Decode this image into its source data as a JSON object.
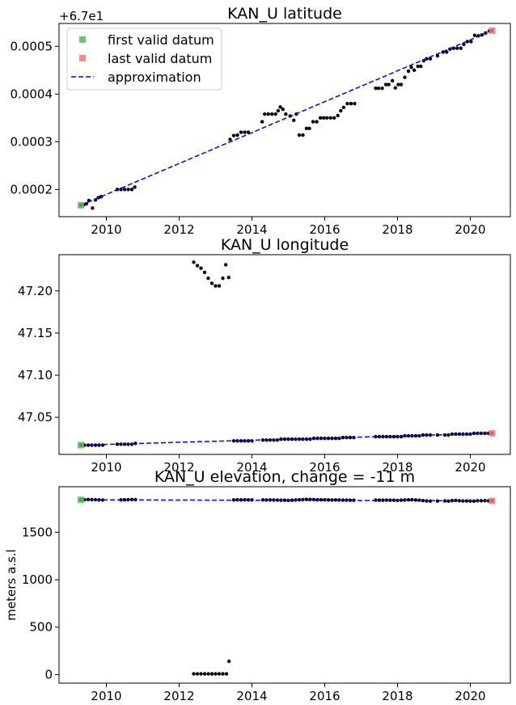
{
  "chart_data": [
    {
      "type": "scatter",
      "title": "KAN_U latitude",
      "offset_text": "+6.7e1",
      "xlabel": "",
      "ylabel": "",
      "xlim": [
        2008.7,
        2021.1
      ],
      "ylim": [
        0.000143,
        0.000548
      ],
      "xticks": [
        2010,
        2012,
        2014,
        2016,
        2018,
        2020
      ],
      "yticks": [
        0.0002,
        0.0003,
        0.0004,
        0.0005
      ],
      "ytick_labels": [
        "0.0002",
        "0.0003",
        "0.0004",
        "0.0005"
      ],
      "legend": {
        "position": "top-left",
        "entries": [
          {
            "label": "first valid datum",
            "color": "#5cb85c",
            "marker": "square"
          },
          {
            "label": "last valid datum",
            "color": "#f07878",
            "marker": "square"
          },
          {
            "label": "approximation",
            "color": "#0000ff",
            "marker": "dashed-line"
          }
        ]
      },
      "first_valid": [
        2009.3,
        0.000167
      ],
      "last_valid": [
        2020.6,
        0.000533
      ],
      "approximation": {
        "x": [
          2009.3,
          2020.6
        ],
        "y": [
          0.000167,
          0.000533
        ]
      },
      "points": [
        [
          2009.3,
          0.000167
        ],
        [
          2009.38,
          0.000168
        ],
        [
          2009.45,
          0.00017
        ],
        [
          2009.52,
          0.000177
        ],
        [
          2009.62,
          0.000161
        ],
        [
          2009.7,
          0.000178
        ],
        [
          2009.78,
          0.000183
        ],
        [
          2009.86,
          0.000185
        ],
        [
          2010.3,
          0.0002
        ],
        [
          2010.4,
          0.0002
        ],
        [
          2010.5,
          0.0002
        ],
        [
          2010.6,
          0.0002
        ],
        [
          2010.7,
          0.0002
        ],
        [
          2010.78,
          0.000205
        ],
        [
          2013.4,
          0.000305
        ],
        [
          2013.5,
          0.000313
        ],
        [
          2013.6,
          0.000314
        ],
        [
          2013.7,
          0.00032
        ],
        [
          2013.8,
          0.00032
        ],
        [
          2013.9,
          0.00032
        ],
        [
          2014.28,
          0.000342
        ],
        [
          2014.35,
          0.000358
        ],
        [
          2014.45,
          0.000358
        ],
        [
          2014.55,
          0.000358
        ],
        [
          2014.65,
          0.000358
        ],
        [
          2014.72,
          0.000365
        ],
        [
          2014.78,
          0.000373
        ],
        [
          2014.85,
          0.000368
        ],
        [
          2014.93,
          0.000358
        ],
        [
          2015.05,
          0.000354
        ],
        [
          2015.15,
          0.000345
        ],
        [
          2015.22,
          0.000358
        ],
        [
          2015.3,
          0.000314
        ],
        [
          2015.4,
          0.000314
        ],
        [
          2015.5,
          0.000328
        ],
        [
          2015.58,
          0.000328
        ],
        [
          2015.68,
          0.000342
        ],
        [
          2015.78,
          0.000342
        ],
        [
          2015.88,
          0.00035
        ],
        [
          2015.97,
          0.00035
        ],
        [
          2016.06,
          0.00035
        ],
        [
          2016.16,
          0.00035
        ],
        [
          2016.26,
          0.00035
        ],
        [
          2016.36,
          0.000355
        ],
        [
          2016.44,
          0.000365
        ],
        [
          2016.52,
          0.000372
        ],
        [
          2016.62,
          0.00038
        ],
        [
          2016.72,
          0.00038
        ],
        [
          2016.82,
          0.00038
        ],
        [
          2017.4,
          0.000412
        ],
        [
          2017.48,
          0.000412
        ],
        [
          2017.58,
          0.000412
        ],
        [
          2017.68,
          0.00042
        ],
        [
          2017.76,
          0.00042
        ],
        [
          2017.86,
          0.000428
        ],
        [
          2017.94,
          0.000413
        ],
        [
          2018.02,
          0.00042
        ],
        [
          2018.1,
          0.00042
        ],
        [
          2018.2,
          0.000435
        ],
        [
          2018.3,
          0.000448
        ],
        [
          2018.38,
          0.000456
        ],
        [
          2018.46,
          0.00045
        ],
        [
          2018.56,
          0.000458
        ],
        [
          2018.64,
          0.000458
        ],
        [
          2018.72,
          0.00047
        ],
        [
          2018.8,
          0.000474
        ],
        [
          2018.9,
          0.000474
        ],
        [
          2019.1,
          0.00048
        ],
        [
          2019.25,
          0.000488
        ],
        [
          2019.35,
          0.000488
        ],
        [
          2019.44,
          0.000494
        ],
        [
          2019.54,
          0.000496
        ],
        [
          2019.64,
          0.000496
        ],
        [
          2019.74,
          0.000496
        ],
        [
          2019.82,
          0.000504
        ],
        [
          2019.92,
          0.00051
        ],
        [
          2020.02,
          0.00051
        ],
        [
          2020.12,
          0.000523
        ],
        [
          2020.22,
          0.000522
        ],
        [
          2020.32,
          0.000524
        ],
        [
          2020.42,
          0.000528
        ],
        [
          2020.52,
          0.000532
        ],
        [
          2020.6,
          0.000533
        ]
      ]
    },
    {
      "type": "scatter",
      "title": "KAN_U longitude",
      "xlabel": "",
      "ylabel": "",
      "xlim": [
        2008.7,
        2021.1
      ],
      "ylim": [
        47.006,
        47.243
      ],
      "xticks": [
        2010,
        2012,
        2014,
        2016,
        2018,
        2020
      ],
      "yticks": [
        47.05,
        47.1,
        47.15,
        47.2
      ],
      "ytick_labels": [
        "47.05",
        "47.10",
        "47.15",
        "47.20"
      ],
      "first_valid": [
        2009.3,
        47.017
      ],
      "last_valid": [
        2020.6,
        47.031
      ],
      "approximation": {
        "x": [
          2009.3,
          2020.6
        ],
        "y": [
          47.017,
          47.031
        ]
      },
      "points": [
        [
          2009.3,
          47.017
        ],
        [
          2009.4,
          47.017
        ],
        [
          2009.5,
          47.017
        ],
        [
          2009.6,
          47.017
        ],
        [
          2009.7,
          47.017
        ],
        [
          2009.8,
          47.017
        ],
        [
          2009.9,
          47.017
        ],
        [
          2010.3,
          47.018
        ],
        [
          2010.4,
          47.018
        ],
        [
          2010.5,
          47.018
        ],
        [
          2010.6,
          47.018
        ],
        [
          2010.7,
          47.018
        ],
        [
          2010.8,
          47.019
        ],
        [
          2012.4,
          47.234
        ],
        [
          2012.5,
          47.23
        ],
        [
          2012.6,
          47.227
        ],
        [
          2012.7,
          47.222
        ],
        [
          2012.8,
          47.215
        ],
        [
          2012.9,
          47.209
        ],
        [
          2013.0,
          47.206
        ],
        [
          2013.1,
          47.206
        ],
        [
          2013.2,
          47.215
        ],
        [
          2013.28,
          47.231
        ],
        [
          2013.36,
          47.216
        ],
        [
          2013.5,
          47.022
        ],
        [
          2013.6,
          47.022
        ],
        [
          2013.7,
          47.022
        ],
        [
          2013.8,
          47.022
        ],
        [
          2013.9,
          47.022
        ],
        [
          2014.0,
          47.022
        ],
        [
          2014.3,
          47.023
        ],
        [
          2014.4,
          47.023
        ],
        [
          2014.5,
          47.023
        ],
        [
          2014.6,
          47.023
        ],
        [
          2014.7,
          47.023
        ],
        [
          2014.8,
          47.024
        ],
        [
          2014.9,
          47.024
        ],
        [
          2015.0,
          47.024
        ],
        [
          2015.1,
          47.024
        ],
        [
          2015.2,
          47.024
        ],
        [
          2015.3,
          47.024
        ],
        [
          2015.4,
          47.024
        ],
        [
          2015.5,
          47.024
        ],
        [
          2015.6,
          47.024
        ],
        [
          2015.7,
          47.025
        ],
        [
          2015.8,
          47.025
        ],
        [
          2015.9,
          47.025
        ],
        [
          2016.0,
          47.025
        ],
        [
          2016.1,
          47.025
        ],
        [
          2016.2,
          47.025
        ],
        [
          2016.3,
          47.025
        ],
        [
          2016.4,
          47.025
        ],
        [
          2016.5,
          47.026
        ],
        [
          2016.6,
          47.026
        ],
        [
          2016.7,
          47.026
        ],
        [
          2016.8,
          47.026
        ],
        [
          2017.4,
          47.027
        ],
        [
          2017.5,
          47.027
        ],
        [
          2017.6,
          47.027
        ],
        [
          2017.7,
          47.027
        ],
        [
          2017.8,
          47.027
        ],
        [
          2017.9,
          47.027
        ],
        [
          2018.0,
          47.027
        ],
        [
          2018.1,
          47.027
        ],
        [
          2018.2,
          47.028
        ],
        [
          2018.3,
          47.028
        ],
        [
          2018.4,
          47.028
        ],
        [
          2018.5,
          47.028
        ],
        [
          2018.6,
          47.028
        ],
        [
          2018.7,
          47.029
        ],
        [
          2018.8,
          47.029
        ],
        [
          2018.9,
          47.029
        ],
        [
          2019.1,
          47.029
        ],
        [
          2019.3,
          47.029
        ],
        [
          2019.4,
          47.029
        ],
        [
          2019.5,
          47.03
        ],
        [
          2019.6,
          47.03
        ],
        [
          2019.7,
          47.03
        ],
        [
          2019.8,
          47.03
        ],
        [
          2019.9,
          47.03
        ],
        [
          2020.0,
          47.03
        ],
        [
          2020.1,
          47.031
        ],
        [
          2020.2,
          47.031
        ],
        [
          2020.3,
          47.031
        ],
        [
          2020.4,
          47.031
        ],
        [
          2020.5,
          47.031
        ],
        [
          2020.6,
          47.031
        ]
      ]
    },
    {
      "type": "scatter",
      "title": "KAN_U elevation, change = -11 m",
      "xlabel": "",
      "ylabel": "meters a.s.l",
      "xlim": [
        2008.7,
        2021.1
      ],
      "ylim": [
        -90,
        1980
      ],
      "xticks": [
        2010,
        2012,
        2014,
        2016,
        2018,
        2020
      ],
      "yticks": [
        0,
        500,
        1000,
        1500
      ],
      "ytick_labels": [
        "0",
        "500",
        "1000",
        "1500"
      ],
      "first_valid": [
        2009.3,
        1842
      ],
      "last_valid": [
        2020.6,
        1831
      ],
      "approximation": {
        "x": [
          2009.3,
          2020.6
        ],
        "y": [
          1842,
          1831
        ]
      },
      "points": [
        [
          2009.3,
          1842
        ],
        [
          2009.4,
          1843
        ],
        [
          2009.5,
          1845
        ],
        [
          2009.6,
          1844
        ],
        [
          2009.7,
          1843
        ],
        [
          2009.8,
          1841
        ],
        [
          2009.9,
          1840
        ],
        [
          2010.4,
          1841
        ],
        [
          2010.5,
          1842
        ],
        [
          2010.6,
          1843
        ],
        [
          2010.7,
          1845
        ],
        [
          2010.8,
          1844
        ],
        [
          2012.4,
          8
        ],
        [
          2012.5,
          8
        ],
        [
          2012.6,
          8
        ],
        [
          2012.7,
          8
        ],
        [
          2012.8,
          8
        ],
        [
          2012.9,
          8
        ],
        [
          2013.0,
          8
        ],
        [
          2013.1,
          8
        ],
        [
          2013.2,
          8
        ],
        [
          2013.3,
          8
        ],
        [
          2013.37,
          140
        ],
        [
          2013.5,
          1841
        ],
        [
          2013.6,
          1842
        ],
        [
          2013.7,
          1841
        ],
        [
          2013.8,
          1842
        ],
        [
          2013.9,
          1841
        ],
        [
          2014.0,
          1841
        ],
        [
          2014.3,
          1841
        ],
        [
          2014.4,
          1840
        ],
        [
          2014.5,
          1841
        ],
        [
          2014.6,
          1840
        ],
        [
          2014.7,
          1839
        ],
        [
          2014.8,
          1838
        ],
        [
          2014.9,
          1838
        ],
        [
          2015.0,
          1836
        ],
        [
          2015.1,
          1838
        ],
        [
          2015.2,
          1840
        ],
        [
          2015.3,
          1842
        ],
        [
          2015.4,
          1844
        ],
        [
          2015.5,
          1846
        ],
        [
          2015.6,
          1845
        ],
        [
          2015.7,
          1844
        ],
        [
          2015.8,
          1842
        ],
        [
          2015.9,
          1842
        ],
        [
          2016.0,
          1842
        ],
        [
          2016.1,
          1841
        ],
        [
          2016.2,
          1840
        ],
        [
          2016.3,
          1841
        ],
        [
          2016.4,
          1840
        ],
        [
          2016.5,
          1839
        ],
        [
          2016.6,
          1839
        ],
        [
          2016.7,
          1838
        ],
        [
          2016.8,
          1838
        ],
        [
          2017.4,
          1839
        ],
        [
          2017.5,
          1838
        ],
        [
          2017.6,
          1838
        ],
        [
          2017.7,
          1839
        ],
        [
          2017.8,
          1838
        ],
        [
          2017.9,
          1838
        ],
        [
          2018.0,
          1836
        ],
        [
          2018.1,
          1838
        ],
        [
          2018.2,
          1840
        ],
        [
          2018.3,
          1842
        ],
        [
          2018.4,
          1843
        ],
        [
          2018.5,
          1840
        ],
        [
          2018.6,
          1838
        ],
        [
          2018.7,
          1834
        ],
        [
          2018.8,
          1830
        ],
        [
          2018.9,
          1828
        ],
        [
          2019.1,
          1829
        ],
        [
          2019.3,
          1830
        ],
        [
          2019.4,
          1828
        ],
        [
          2019.5,
          1833
        ],
        [
          2019.6,
          1836
        ],
        [
          2019.7,
          1832
        ],
        [
          2019.8,
          1830
        ],
        [
          2019.9,
          1830
        ],
        [
          2020.0,
          1829
        ],
        [
          2020.1,
          1828
        ],
        [
          2020.2,
          1832
        ],
        [
          2020.3,
          1832
        ],
        [
          2020.4,
          1833
        ],
        [
          2020.5,
          1831
        ],
        [
          2020.6,
          1831
        ]
      ]
    }
  ]
}
